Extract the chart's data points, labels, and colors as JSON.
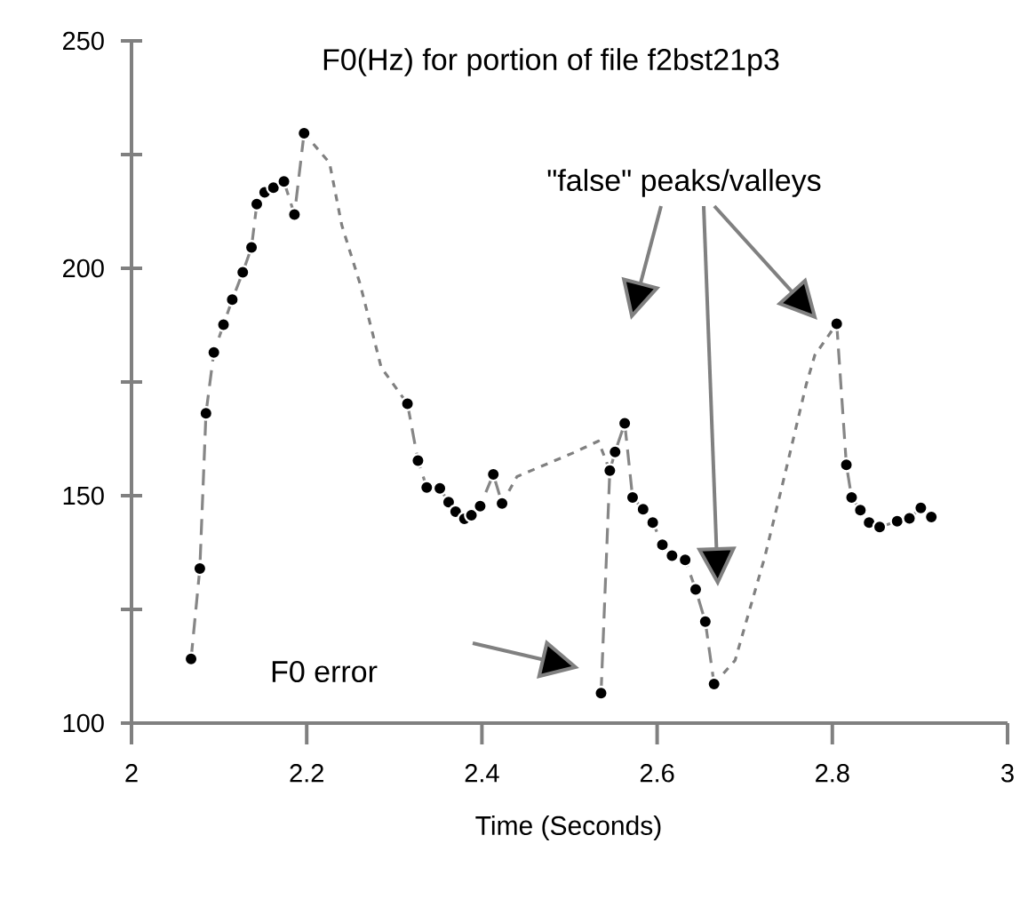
{
  "chart_data": {
    "type": "line",
    "title": "F0(Hz) for portion of file f2bst21p3",
    "xlabel": "Time (Seconds)",
    "xlim": [
      2,
      3
    ],
    "xticks": [
      2,
      2.2,
      2.4,
      2.6,
      2.8,
      3
    ],
    "ylim": [
      100,
      250
    ],
    "yticks": [
      100,
      {
        "value": 125,
        "label": null
      },
      150,
      {
        "value": 175,
        "label": null
      },
      200,
      {
        "value": 225,
        "label": null
      },
      250
    ],
    "marker": "circle",
    "line_style": "dashed",
    "series": [
      {
        "color": "#000000",
        "x": [
          2.068,
          2.078,
          2.085,
          2.094,
          2.105,
          2.115,
          2.127,
          2.137,
          2.143,
          2.152,
          2.162,
          2.174,
          2.186,
          2.197
        ],
        "values": [
          114.1,
          134,
          168.1,
          181.5,
          187.6,
          193.1,
          199.1,
          204.6,
          214.1,
          216.7,
          217.7,
          219.1,
          211.8,
          229.7
        ]
      },
      {
        "color": "#808080",
        "marker": "none",
        "line_style": "dotted",
        "x": [
          2.197,
          2.226,
          2.24,
          2.261,
          2.285,
          2.315
        ],
        "values": [
          229.7,
          223.2,
          209.5,
          196.5,
          178.2,
          170.2
        ]
      },
      {
        "color": "#000000",
        "x": [
          2.315,
          2.327,
          2.337,
          2.352,
          2.362,
          2.37,
          2.38,
          2.388,
          2.398,
          2.413,
          2.423
        ],
        "values": [
          170.2,
          157.7,
          151.8,
          151.6,
          148.6,
          146.5,
          144.9,
          145.7,
          147.7,
          154.7,
          148.3
        ]
      },
      {
        "color": "#808080",
        "marker": "none",
        "line_style": "dotted",
        "x": [
          2.423,
          2.44,
          2.504,
          2.533,
          2.546
        ],
        "values": [
          148.3,
          154.2,
          159.4,
          162,
          155.5
        ]
      },
      {
        "color": "#000000",
        "x": [
          2.536,
          2.546,
          2.552,
          2.563,
          2.572,
          2.584,
          2.595,
          2.606,
          2.617,
          2.632,
          2.644,
          2.655,
          2.665
        ],
        "values": [
          106.6,
          155.5,
          159.6,
          165.9,
          149.6,
          147,
          144.1,
          139.2,
          136.8,
          135.9,
          129.4,
          122.3,
          108.6
        ]
      },
      {
        "color": "#808080",
        "marker": "none",
        "line_style": "dotted",
        "x": [
          2.665,
          2.689,
          2.723,
          2.746,
          2.77,
          2.78,
          2.805
        ],
        "values": [
          108.6,
          113.8,
          136.6,
          154.8,
          174.3,
          180.9,
          187.8
        ]
      },
      {
        "color": "#000000",
        "x": [
          2.805,
          2.816,
          2.822,
          2.832,
          2.842,
          2.854,
          2.874,
          2.888,
          2.901,
          2.913
        ],
        "values": [
          187.8,
          156.8,
          149.6,
          146.8,
          144.1,
          143.1,
          144.4,
          145,
          147.3,
          145.3
        ]
      }
    ],
    "annotations": [
      "\"false\" peaks/valleys",
      "F0 error"
    ]
  }
}
